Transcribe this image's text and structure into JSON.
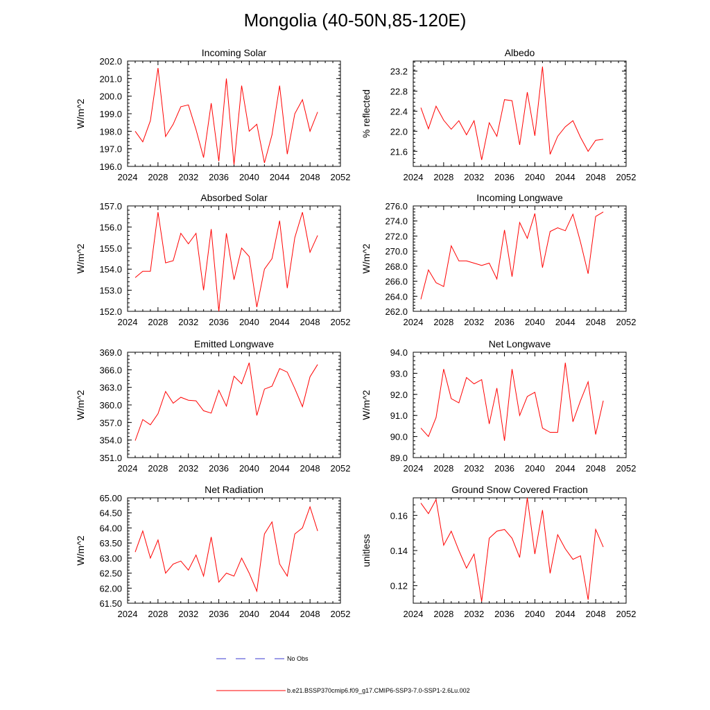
{
  "title": "Mongolia (40-50N,85-120E)",
  "legend": [
    {
      "label": "No Obs",
      "color": "#3a3ad0",
      "style": "dashed"
    },
    {
      "label": "b.e21.BSSP370cmip6.f09_g17.CMIP6-SSP3-7.0-SSP1-2.6Lu.002",
      "color": "#ff0000",
      "style": "solid"
    }
  ],
  "chart_data": [
    {
      "type": "line",
      "title": "Incoming Solar",
      "ylabel": "W/m^2",
      "xlim": [
        2024,
        2052
      ],
      "xticks": [
        "2024",
        "2028",
        "2032",
        "2036",
        "2040",
        "2044",
        "2048",
        "2052"
      ],
      "ylim": [
        196,
        202
      ],
      "yticks": [
        "196.0",
        "197.0",
        "198.0",
        "199.0",
        "200.0",
        "201.0",
        "202.0"
      ],
      "series": [
        {
          "color": "#ff0000",
          "x": [
            2025,
            2026,
            2027,
            2028,
            2029,
            2030,
            2031,
            2032,
            2033,
            2034,
            2035,
            2036,
            2037,
            2038,
            2039,
            2040,
            2041,
            2042,
            2043,
            2044,
            2045,
            2046,
            2047,
            2048,
            2049
          ],
          "y": [
            198.0,
            197.4,
            198.6,
            201.6,
            197.7,
            198.4,
            199.4,
            199.5,
            198.1,
            196.5,
            199.6,
            196.3,
            201.0,
            196.1,
            200.6,
            198.0,
            198.4,
            196.2,
            197.8,
            200.6,
            196.7,
            199.0,
            199.8,
            198.0,
            199.1
          ]
        }
      ]
    },
    {
      "type": "line",
      "title": "Albedo",
      "ylabel": "% reflected",
      "xlim": [
        2024,
        2052
      ],
      "xticks": [
        "2024",
        "2028",
        "2032",
        "2036",
        "2040",
        "2044",
        "2048",
        "2052"
      ],
      "ylim": [
        21.3,
        23.4
      ],
      "yticks": [
        "21.6",
        "22.0",
        "22.4",
        "22.8",
        "23.2"
      ],
      "series": [
        {
          "color": "#ff0000",
          "x": [
            2025,
            2026,
            2027,
            2028,
            2029,
            2030,
            2031,
            2032,
            2033,
            2034,
            2035,
            2036,
            2037,
            2038,
            2039,
            2040,
            2041,
            2042,
            2043,
            2044,
            2045,
            2046,
            2047,
            2048,
            2049
          ],
          "y": [
            22.47,
            22.05,
            22.5,
            22.22,
            22.04,
            22.21,
            21.93,
            22.21,
            21.43,
            22.17,
            21.9,
            22.63,
            22.61,
            21.73,
            22.78,
            21.91,
            23.29,
            21.54,
            21.9,
            22.09,
            22.21,
            21.88,
            21.6,
            21.82,
            21.84
          ]
        }
      ]
    },
    {
      "type": "line",
      "title": "Absorbed Solar",
      "ylabel": "W/m^2",
      "xlim": [
        2024,
        2052
      ],
      "xticks": [
        "2024",
        "2028",
        "2032",
        "2036",
        "2040",
        "2044",
        "2048",
        "2052"
      ],
      "ylim": [
        152,
        157
      ],
      "yticks": [
        "152.0",
        "153.0",
        "154.0",
        "155.0",
        "156.0",
        "157.0"
      ],
      "series": [
        {
          "color": "#ff0000",
          "x": [
            2025,
            2026,
            2027,
            2028,
            2029,
            2030,
            2031,
            2032,
            2033,
            2034,
            2035,
            2036,
            2037,
            2038,
            2039,
            2040,
            2041,
            2042,
            2043,
            2044,
            2045,
            2046,
            2047,
            2048,
            2049
          ],
          "y": [
            153.6,
            153.9,
            153.9,
            156.7,
            154.3,
            154.4,
            155.7,
            155.2,
            155.7,
            153.0,
            155.9,
            152.0,
            155.7,
            153.5,
            155.0,
            154.6,
            152.2,
            154.0,
            154.5,
            156.3,
            153.1,
            155.5,
            156.7,
            154.8,
            155.6
          ]
        }
      ]
    },
    {
      "type": "line",
      "title": "Incoming Longwave",
      "ylabel": "W/m^2",
      "xlim": [
        2024,
        2052
      ],
      "xticks": [
        "2024",
        "2028",
        "2032",
        "2036",
        "2040",
        "2044",
        "2048",
        "2052"
      ],
      "ylim": [
        262,
        276
      ],
      "yticks": [
        "262.0",
        "264.0",
        "266.0",
        "268.0",
        "270.0",
        "272.0",
        "274.0",
        "276.0"
      ],
      "series": [
        {
          "color": "#ff0000",
          "x": [
            2025,
            2026,
            2027,
            2028,
            2029,
            2030,
            2031,
            2032,
            2033,
            2034,
            2035,
            2036,
            2037,
            2038,
            2039,
            2040,
            2041,
            2042,
            2043,
            2044,
            2045,
            2046,
            2047,
            2048,
            2049
          ],
          "y": [
            263.6,
            267.5,
            265.8,
            265.3,
            270.7,
            268.7,
            268.7,
            268.4,
            268.1,
            268.4,
            266.3,
            272.8,
            266.6,
            273.8,
            271.7,
            275.0,
            267.8,
            272.6,
            273.1,
            272.7,
            274.9,
            271.2,
            267.0,
            274.6,
            275.2
          ]
        }
      ]
    },
    {
      "type": "line",
      "title": "Emitted Longwave",
      "ylabel": "W/m^2",
      "xlim": [
        2024,
        2052
      ],
      "xticks": [
        "2024",
        "2028",
        "2032",
        "2036",
        "2040",
        "2044",
        "2048",
        "2052"
      ],
      "ylim": [
        351,
        369
      ],
      "yticks": [
        "351.0",
        "354.0",
        "357.0",
        "360.0",
        "363.0",
        "366.0",
        "369.0"
      ],
      "series": [
        {
          "color": "#ff0000",
          "x": [
            2025,
            2026,
            2027,
            2028,
            2029,
            2030,
            2031,
            2032,
            2033,
            2034,
            2035,
            2036,
            2037,
            2038,
            2039,
            2040,
            2041,
            2042,
            2043,
            2044,
            2045,
            2046,
            2047,
            2048,
            2049
          ],
          "y": [
            353.9,
            357.5,
            356.6,
            358.5,
            362.3,
            360.3,
            361.3,
            360.8,
            360.7,
            359.0,
            358.6,
            362.5,
            359.8,
            364.9,
            363.6,
            367.2,
            358.2,
            362.7,
            363.2,
            366.2,
            365.6,
            362.8,
            359.7,
            364.8,
            366.9
          ]
        }
      ]
    },
    {
      "type": "line",
      "title": "Net Longwave",
      "ylabel": "W/m^2",
      "xlim": [
        2024,
        2052
      ],
      "xticks": [
        "2024",
        "2028",
        "2032",
        "2036",
        "2040",
        "2044",
        "2048",
        "2052"
      ],
      "ylim": [
        89,
        94
      ],
      "yticks": [
        "89.0",
        "90.0",
        "91.0",
        "92.0",
        "93.0",
        "94.0"
      ],
      "series": [
        {
          "color": "#ff0000",
          "x": [
            2025,
            2026,
            2027,
            2028,
            2029,
            2030,
            2031,
            2032,
            2033,
            2034,
            2035,
            2036,
            2037,
            2038,
            2039,
            2040,
            2041,
            2042,
            2043,
            2044,
            2045,
            2046,
            2047,
            2048,
            2049
          ],
          "y": [
            90.4,
            90.0,
            90.9,
            93.2,
            91.8,
            91.6,
            92.8,
            92.5,
            92.7,
            90.6,
            92.3,
            89.8,
            93.2,
            91.0,
            91.9,
            92.1,
            90.4,
            90.2,
            90.2,
            93.5,
            90.7,
            91.7,
            92.6,
            90.1,
            91.7
          ]
        }
      ]
    },
    {
      "type": "line",
      "title": "Net Radiation",
      "ylabel": "W/m^2",
      "xlim": [
        2024,
        2052
      ],
      "xticks": [
        "2024",
        "2028",
        "2032",
        "2036",
        "2040",
        "2044",
        "2048",
        "2052"
      ],
      "ylim": [
        61.5,
        65
      ],
      "yticks": [
        "61.50",
        "62.00",
        "62.50",
        "63.00",
        "63.50",
        "64.00",
        "64.50",
        "65.00"
      ],
      "series": [
        {
          "color": "#ff0000",
          "x": [
            2025,
            2026,
            2027,
            2028,
            2029,
            2030,
            2031,
            2032,
            2033,
            2034,
            2035,
            2036,
            2037,
            2038,
            2039,
            2040,
            2041,
            2042,
            2043,
            2044,
            2045,
            2046,
            2047,
            2048,
            2049
          ],
          "y": [
            63.2,
            63.9,
            63.0,
            63.6,
            62.5,
            62.8,
            62.9,
            62.6,
            63.1,
            62.4,
            63.7,
            62.2,
            62.5,
            62.4,
            63.0,
            62.5,
            61.9,
            63.8,
            64.2,
            62.8,
            62.4,
            63.8,
            64.0,
            64.7,
            63.9
          ]
        }
      ]
    },
    {
      "type": "line",
      "title": "Ground Snow Covered Fraction",
      "ylabel": "unitless",
      "xlim": [
        2024,
        2052
      ],
      "xticks": [
        "2024",
        "2028",
        "2032",
        "2036",
        "2040",
        "2044",
        "2048",
        "2052"
      ],
      "ylim": [
        0.11,
        0.17
      ],
      "yticks": [
        "0.12",
        "0.14",
        "0.16"
      ],
      "series": [
        {
          "color": "#ff0000",
          "x": [
            2025,
            2026,
            2027,
            2028,
            2029,
            2030,
            2031,
            2032,
            2033,
            2034,
            2035,
            2036,
            2037,
            2038,
            2039,
            2040,
            2041,
            2042,
            2043,
            2044,
            2045,
            2046,
            2047,
            2048,
            2049
          ],
          "y": [
            0.167,
            0.161,
            0.169,
            0.143,
            0.151,
            0.14,
            0.13,
            0.138,
            0.111,
            0.147,
            0.151,
            0.152,
            0.147,
            0.136,
            0.17,
            0.138,
            0.163,
            0.127,
            0.149,
            0.141,
            0.135,
            0.137,
            0.112,
            0.152,
            0.142
          ]
        }
      ]
    }
  ]
}
